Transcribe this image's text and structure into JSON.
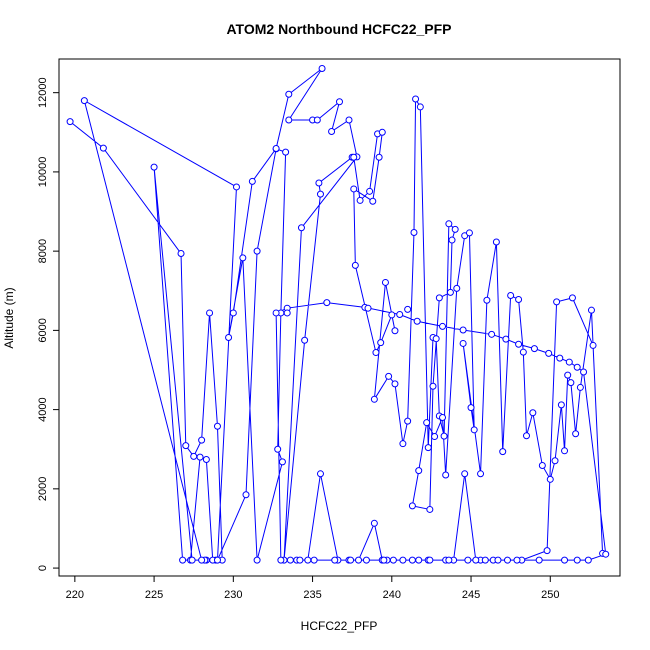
{
  "chart_data": {
    "type": "scatter",
    "title": "ATOM2 Northbound HCFC22_PFP",
    "xlabel": "HCFC22_PFP",
    "ylabel": "Altitude (m)",
    "xlim": [
      219.0,
      254.4
    ],
    "ylim": [
      -200,
      12850
    ],
    "x_ticks": [
      220,
      225,
      230,
      235,
      240,
      245,
      250
    ],
    "y_ticks": [
      0,
      2000,
      4000,
      6000,
      8000,
      10000,
      12000
    ],
    "grid": false,
    "legend": "none",
    "series_color": "#0000ff",
    "mode": "lines+markers",
    "x": [
      219.7,
      221.8,
      226.7,
      227.0,
      227.5,
      228.0,
      228.5,
      229.0,
      229.3,
      228.9,
      228.7,
      228.3,
      227.9,
      227.3,
      226.8,
      225.0,
      227.4,
      228.3,
      228.2,
      228.0,
      220.6,
      230.2,
      229.0,
      230.8,
      231.5,
      232.7,
      233.3,
      233.0,
      232.8,
      233.1,
      231.5,
      230.6,
      229.7,
      230.0,
      231.2,
      232.7,
      233.5,
      235.6,
      233.5,
      235.0,
      235.3,
      236.7,
      236.2,
      237.3,
      237.8,
      234.3,
      233.2,
      234.5,
      235.5,
      235.4,
      237.5,
      237.6,
      238.0,
      238.6,
      239.1,
      239.4,
      239.2,
      238.8,
      237.6,
      237.7,
      239.0,
      239.3,
      240.0,
      240.2,
      239.6,
      238.9,
      239.8,
      240.2,
      240.7,
      241.0,
      241.4,
      241.5,
      241.8,
      242.3,
      242.6,
      242.8,
      243.0,
      243.3,
      243.6,
      244.0,
      243.8,
      243.7,
      243.0,
      242.6,
      242.4,
      241.3,
      241.7,
      242.2,
      242.7,
      243.2,
      243.4,
      244.1,
      244.6,
      244.9,
      245.2,
      245.0,
      244.5,
      245.6,
      246.0,
      246.6,
      247.0,
      247.5,
      248.0,
      248.3,
      248.5,
      248.9,
      249.5,
      250.0,
      250.3,
      250.7,
      250.9,
      251.1,
      251.3,
      251.6,
      251.9,
      252.6,
      253.3,
      252.7,
      251.4,
      250.4,
      249.8,
      248.2,
      247.3,
      246.4,
      245.6,
      245.3,
      244.6,
      243.9,
      243.4,
      242.3,
      241.3,
      240.7,
      239.4,
      238.9,
      237.9,
      237.3,
      236.6,
      235.5,
      234.7,
      233.0,
      232.7,
      233.4,
      235.9,
      238.3,
      240.5,
      241.6,
      243.2,
      244.5,
      246.3,
      247.2,
      248.0,
      249.0,
      249.9,
      250.6,
      251.2,
      251.7,
      252.1,
      253.5,
      252.4,
      251.7,
      250.9,
      249.3,
      247.9,
      246.7,
      245.9,
      244.8,
      243.6,
      242.4,
      241.7,
      240.1,
      239.7,
      239.5,
      238.4,
      237.4,
      236.4,
      235.1,
      234.0,
      233.6,
      234.2
    ],
    "y": [
      11270,
      10600,
      7940,
      3090,
      2820,
      3230,
      6440,
      3580,
      200,
      200,
      200,
      2740,
      2800,
      200,
      200,
      10120,
      200,
      200,
      200,
      200,
      11800,
      9620,
      200,
      1850,
      8000,
      10580,
      10500,
      6440,
      3000,
      2680,
      200,
      7830,
      5820,
      6440,
      9760,
      10590,
      11960,
      12610,
      11310,
      11310,
      11310,
      11770,
      11020,
      11310,
      10380,
      8590,
      200,
      5750,
      9440,
      9720,
      10370,
      10370,
      9280,
      9510,
      10960,
      11000,
      10370,
      9260,
      9570,
      7640,
      5440,
      5690,
      6390,
      5990,
      7210,
      4260,
      4840,
      4650,
      3140,
      3710,
      8470,
      11840,
      11640,
      3040,
      5820,
      5790,
      3840,
      3330,
      8690,
      8550,
      8280,
      6960,
      6820,
      4590,
      1480,
      1570,
      2460,
      3670,
      3320,
      3800,
      2350,
      7060,
      8390,
      8460,
      3490,
      4050,
      5670,
      2380,
      6760,
      8230,
      2940,
      6880,
      6780,
      5450,
      3340,
      3920,
      2590,
      2240,
      2710,
      4120,
      2960,
      4870,
      4680,
      3390,
      4560,
      6510,
      370,
      5620,
      6820,
      6720,
      440,
      200,
      200,
      200,
      200,
      200,
      2380,
      200,
      200,
      200,
      200,
      200,
      200,
      1130,
      200,
      200,
      200,
      2380,
      200,
      200,
      6440,
      6560,
      6700,
      6580,
      6400,
      6230,
      6100,
      6010,
      5900,
      5780,
      5650,
      5540,
      5420,
      5300,
      5200,
      5070,
      4950,
      350,
      200,
      200,
      200,
      200,
      200,
      200,
      200,
      200,
      200,
      200,
      200,
      200,
      200,
      200,
      200,
      200,
      200,
      200,
      200,
      200,
      200
    ],
    "points_only": [
      [
        233.4,
        6440
      ],
      [
        238.5,
        6560
      ],
      [
        241.0,
        6530
      ]
    ]
  }
}
